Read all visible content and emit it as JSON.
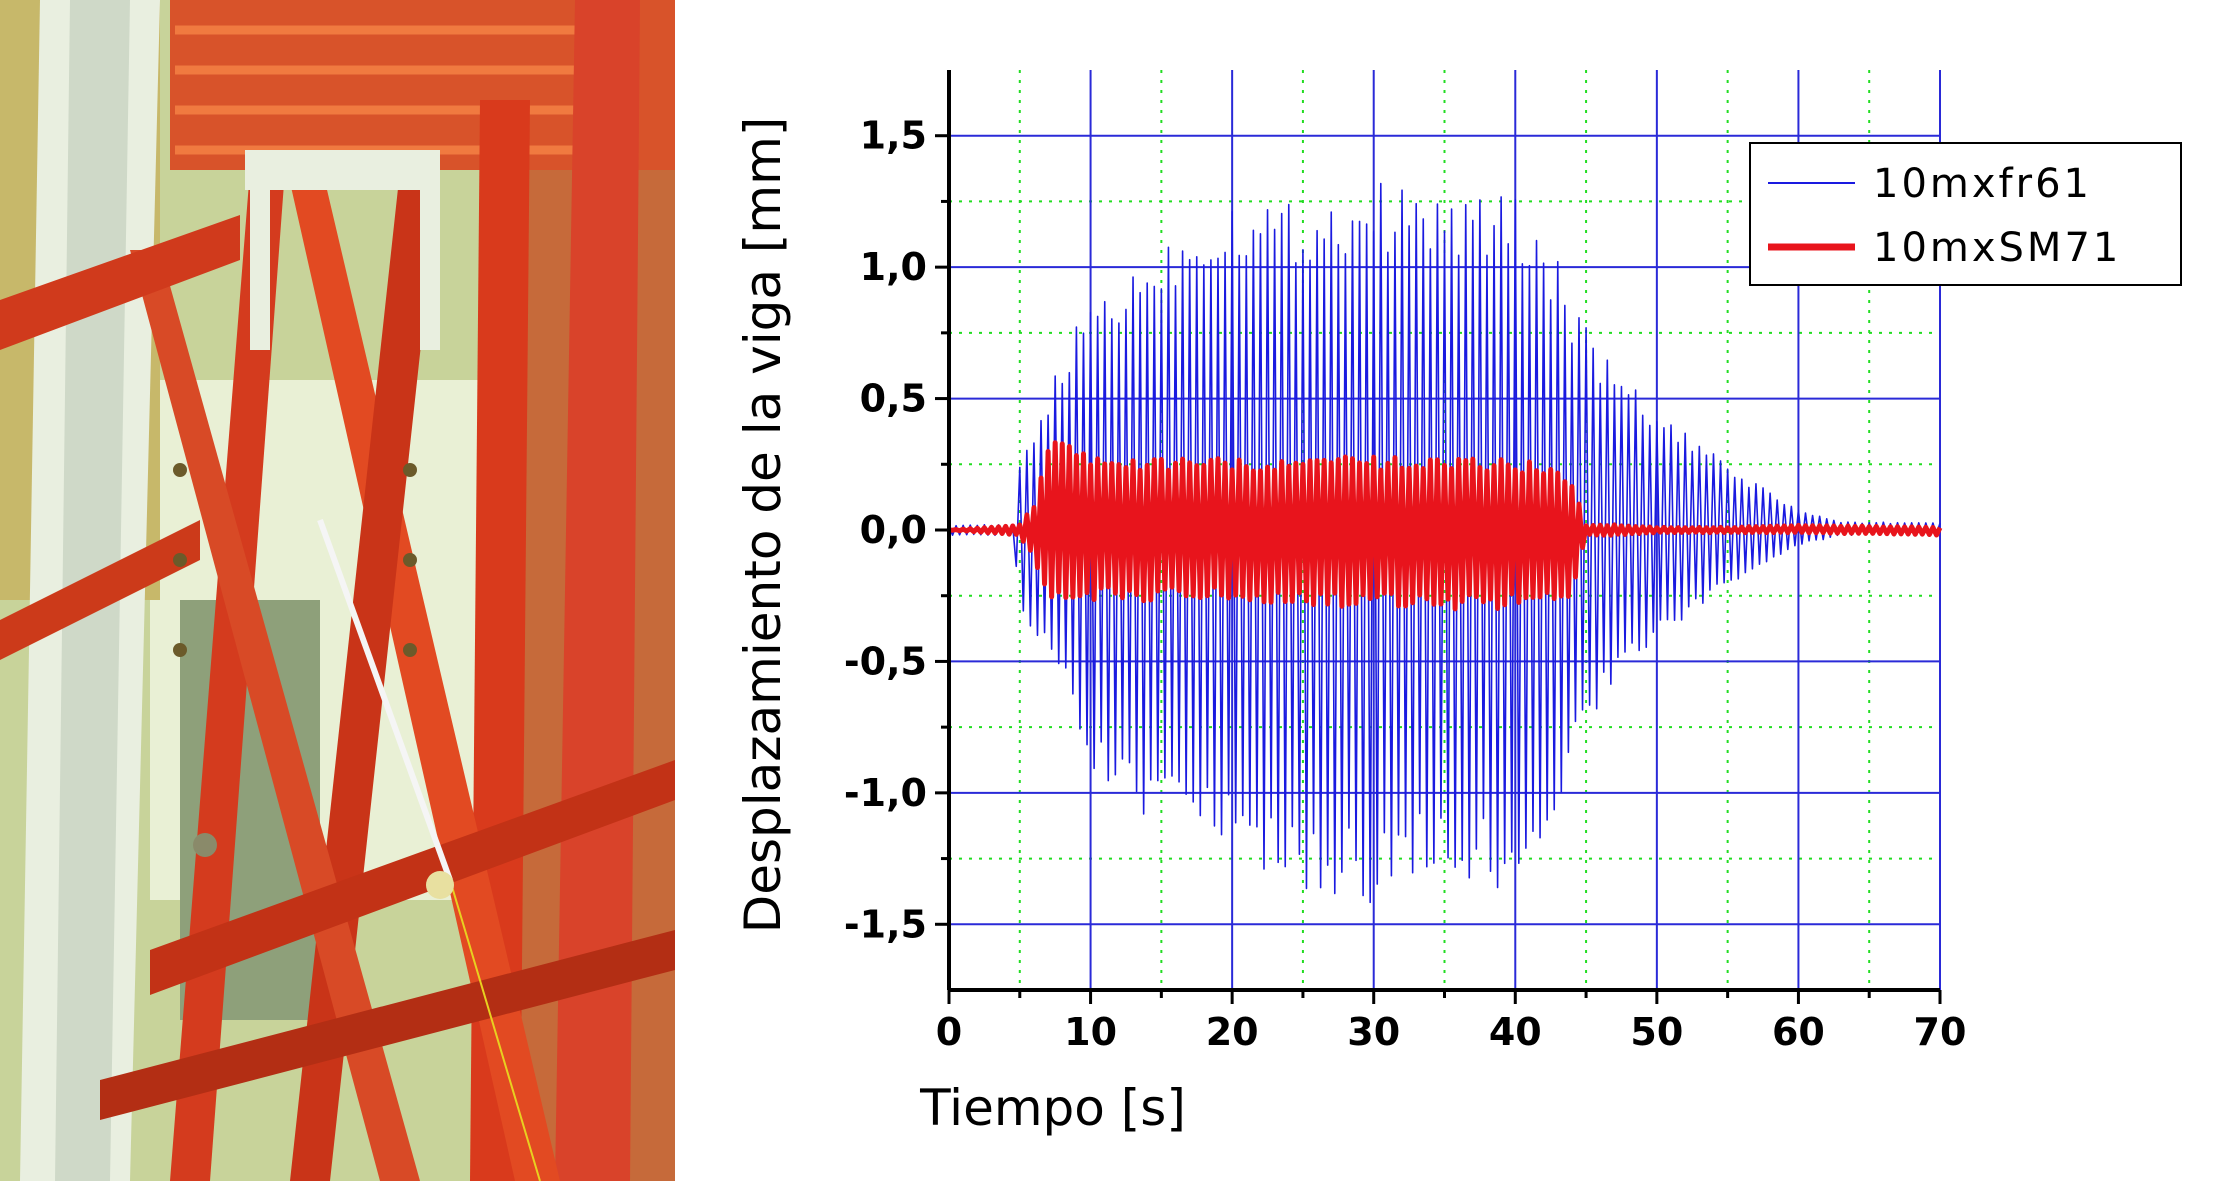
{
  "colors": {
    "signal_1": "#1a1ae0",
    "signal_2": "#e8141c",
    "major_grid": "#2a2ad8",
    "minor_grid": "#22dd22",
    "photo_steel": "#d93a1c",
    "photo_background": "#e9f0d5"
  },
  "photo": {
    "content": "photograph of red steel test frame with instrumented diagonal cable"
  },
  "chart_data": {
    "type": "line",
    "xlabel": "Tiempo [s]",
    "ylabel": "Desplazamiento de la viga [mm]",
    "xlim": [
      0,
      70
    ],
    "ylim": [
      -1.75,
      1.75
    ],
    "x_ticks": [
      0,
      10,
      20,
      30,
      40,
      50,
      60,
      70
    ],
    "x_tick_labels": [
      "0",
      "10",
      "20",
      "30",
      "40",
      "50",
      "60",
      "70"
    ],
    "y_ticks": [
      1.5,
      1.0,
      0.5,
      0.0,
      -0.5,
      -1.0,
      -1.5
    ],
    "y_tick_labels": [
      "1,5",
      "1,0",
      "0,5",
      "0,0",
      "-0,5",
      "-1,0",
      "-1,5"
    ],
    "grid": {
      "major": true,
      "minor": true,
      "minor_style": "dotted"
    },
    "legend": {
      "position": "top-right"
    },
    "series": [
      {
        "name": "10mxfr61",
        "color": "#1a1ae0",
        "style": "thin-oscillation",
        "envelope_time": [
          0,
          4.5,
          5,
          6,
          8,
          10,
          12,
          15,
          20,
          25,
          30,
          35,
          40,
          43,
          44,
          47,
          50,
          55,
          60,
          63,
          70
        ],
        "envelope_upper": [
          0.02,
          0.02,
          0.25,
          0.4,
          0.65,
          0.9,
          0.95,
          1.1,
          1.28,
          1.25,
          1.33,
          1.28,
          1.28,
          1.05,
          0.85,
          0.62,
          0.45,
          0.25,
          0.08,
          0.03,
          0.03
        ],
        "envelope_lower": [
          -0.02,
          -0.02,
          -0.3,
          -0.45,
          -0.55,
          -0.9,
          -1.05,
          -1.15,
          -1.25,
          -1.38,
          -1.42,
          -1.3,
          -1.42,
          -1.1,
          -0.85,
          -0.6,
          -0.42,
          -0.22,
          -0.06,
          -0.02,
          -0.02
        ],
        "cycle_period_s": 0.5
      },
      {
        "name": "10mxSM71",
        "color": "#e8141c",
        "style": "thick-oscillation",
        "envelope_time": [
          0,
          5,
          6,
          7,
          8,
          10,
          20,
          30,
          40,
          44,
          45,
          47,
          50,
          55,
          60,
          70
        ],
        "envelope_upper": [
          0.0,
          0.02,
          0.1,
          0.33,
          0.35,
          0.28,
          0.27,
          0.28,
          0.28,
          0.2,
          0.02,
          0.02,
          0.01,
          0.01,
          0.02,
          0.01
        ],
        "envelope_lower": [
          0.0,
          -0.02,
          -0.12,
          -0.28,
          -0.28,
          -0.27,
          -0.27,
          -0.3,
          -0.3,
          -0.25,
          -0.02,
          -0.02,
          -0.01,
          -0.01,
          -0.01,
          -0.02
        ],
        "cycle_period_s": 0.5
      }
    ]
  }
}
